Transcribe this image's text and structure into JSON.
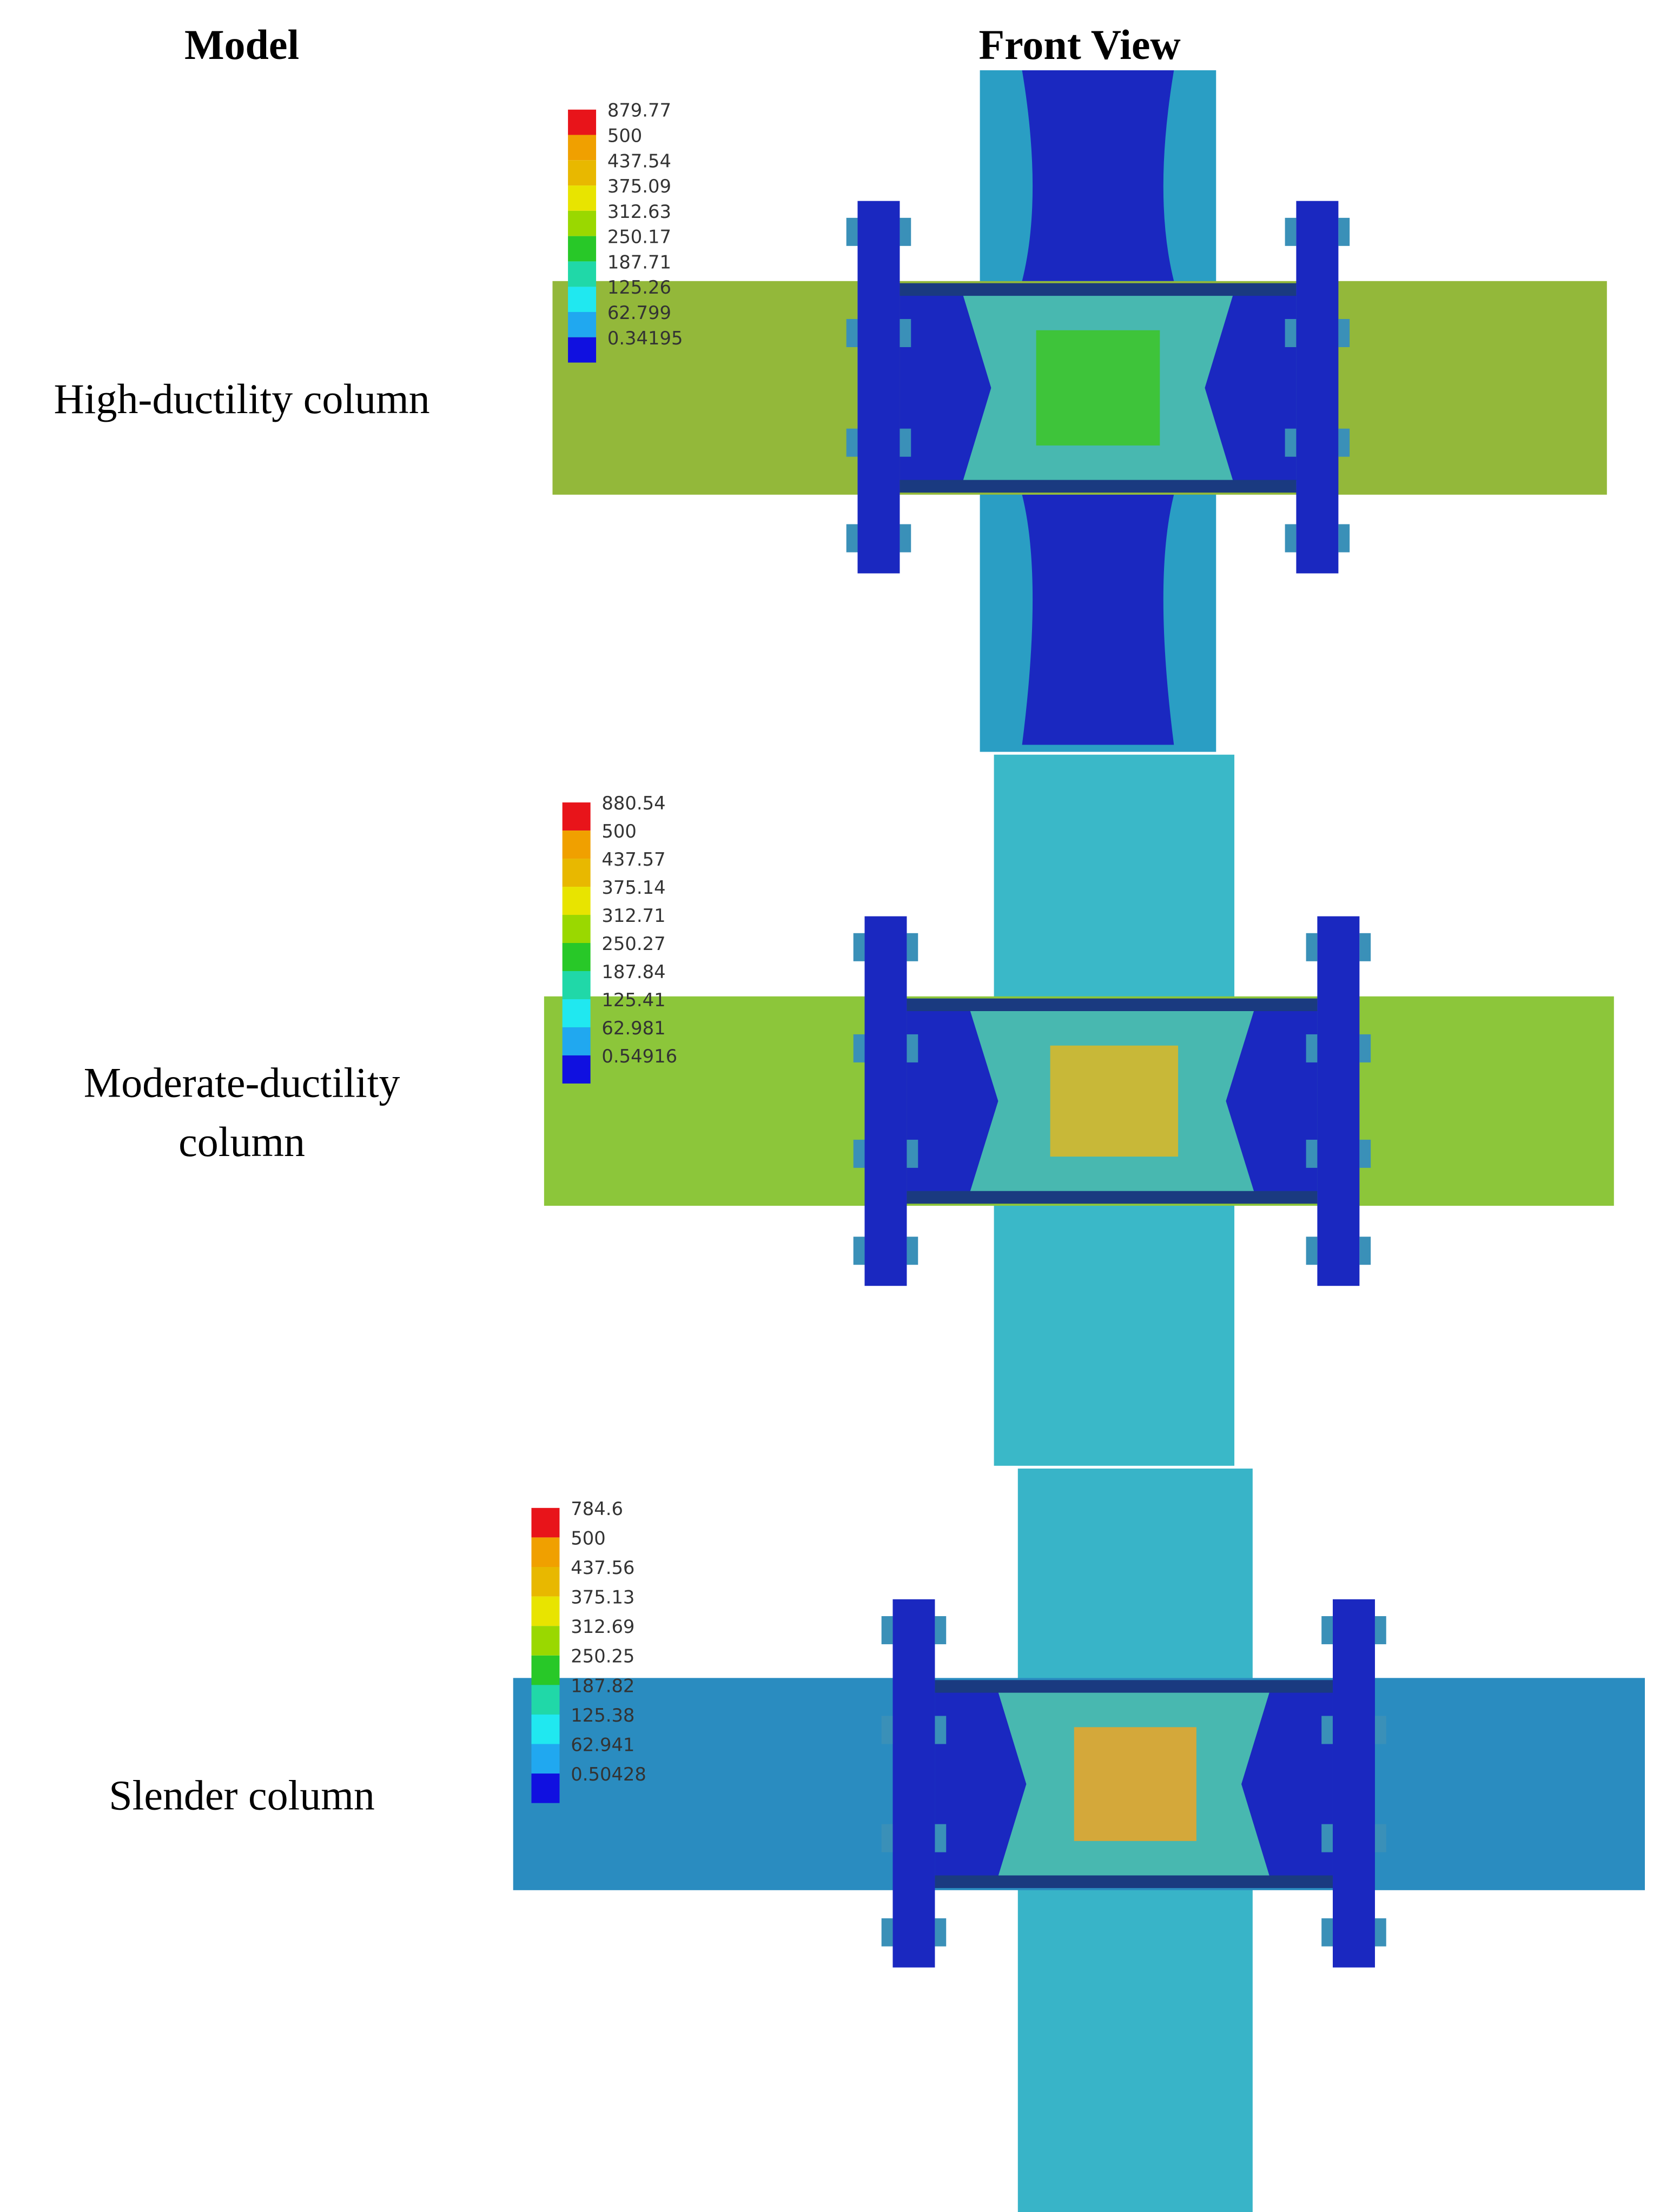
{
  "header": {
    "model": "Model",
    "view": "Front View"
  },
  "rows": [
    {
      "label_lines": [
        "High-ductility column"
      ],
      "legend": [
        "879.77",
        "500",
        "437.54",
        "375.09",
        "312.63",
        "250.17",
        "187.71",
        "125.26",
        "62.799",
        "0.34195"
      ]
    },
    {
      "label_lines": [
        "Moderate-ductility",
        "column"
      ],
      "legend": [
        "880.54",
        "500",
        "437.57",
        "375.14",
        "312.71",
        "250.27",
        "187.84",
        "125.41",
        "62.981",
        "0.54916"
      ]
    },
    {
      "label_lines": [
        "Slender column"
      ],
      "legend": [
        "784.6",
        "500",
        "437.56",
        "375.13",
        "312.69",
        "250.25",
        "187.82",
        "125.38",
        "62.941",
        "0.50428"
      ]
    }
  ]
}
